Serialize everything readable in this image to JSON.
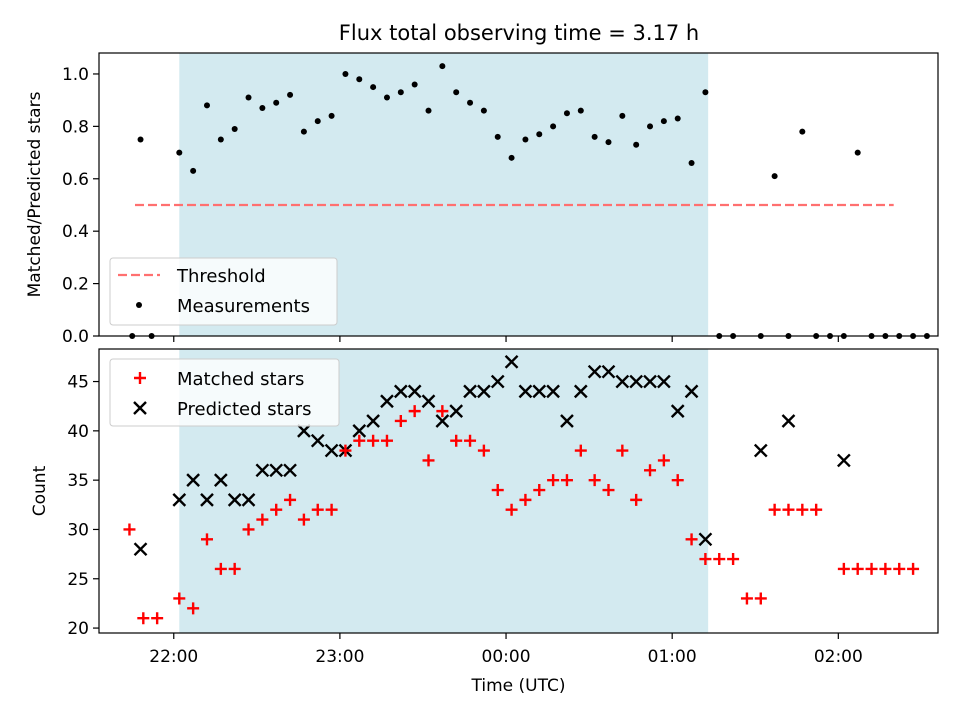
{
  "figure": {
    "title": "Flux total observing time = 3.17 h",
    "xlabel": "Time (UTC)",
    "x_tick_labels": [
      "22:00",
      "23:00",
      "00:00",
      "01:00",
      "02:00"
    ]
  },
  "colors": {
    "span": "#d3eaf0",
    "threshold": "#ff7070",
    "measurement": "#000000",
    "matched": "#ff0000",
    "predicted": "#000000"
  },
  "chart_data": [
    {
      "type": "scatter",
      "panel": "top",
      "ylabel": "Matched/Predicted stars",
      "xlim": [
        "21:33",
        "02:36"
      ],
      "ylim": [
        0,
        1.08
      ],
      "y_ticks": [
        0.0,
        0.2,
        0.4,
        0.6,
        0.8,
        1.0
      ],
      "y_tick_labels": [
        "0.0",
        "0.2",
        "0.4",
        "0.6",
        "0.8",
        "1.0"
      ],
      "shaded_span": [
        "22:02",
        "01:13"
      ],
      "threshold": {
        "name": "Threshold",
        "y": 0.5,
        "x_range": [
          "21:46",
          "02:20"
        ]
      },
      "legend": {
        "loc": "lower left",
        "entries": [
          "Threshold",
          "Measurements"
        ]
      },
      "series": [
        {
          "name": "Measurements",
          "points": [
            [
              "21:45",
              0.0
            ],
            [
              "21:48",
              0.75
            ],
            [
              "21:52",
              0.0
            ],
            [
              "22:02",
              0.7
            ],
            [
              "22:07",
              0.63
            ],
            [
              "22:12",
              0.88
            ],
            [
              "22:17",
              0.75
            ],
            [
              "22:22",
              0.79
            ],
            [
              "22:27",
              0.91
            ],
            [
              "22:32",
              0.87
            ],
            [
              "22:37",
              0.89
            ],
            [
              "22:42",
              0.92
            ],
            [
              "22:47",
              0.78
            ],
            [
              "22:52",
              0.82
            ],
            [
              "22:57",
              0.84
            ],
            [
              "23:02",
              1.0
            ],
            [
              "23:07",
              0.98
            ],
            [
              "23:12",
              0.95
            ],
            [
              "23:17",
              0.91
            ],
            [
              "23:22",
              0.93
            ],
            [
              "23:27",
              0.96
            ],
            [
              "23:32",
              0.86
            ],
            [
              "23:37",
              1.03
            ],
            [
              "23:42",
              0.93
            ],
            [
              "23:47",
              0.89
            ],
            [
              "23:52",
              0.86
            ],
            [
              "23:57",
              0.76
            ],
            [
              "00:02",
              0.68
            ],
            [
              "00:07",
              0.75
            ],
            [
              "00:12",
              0.77
            ],
            [
              "00:17",
              0.8
            ],
            [
              "00:22",
              0.85
            ],
            [
              "00:27",
              0.86
            ],
            [
              "00:32",
              0.76
            ],
            [
              "00:37",
              0.74
            ],
            [
              "00:42",
              0.84
            ],
            [
              "00:47",
              0.73
            ],
            [
              "00:52",
              0.8
            ],
            [
              "00:57",
              0.82
            ],
            [
              "01:02",
              0.83
            ],
            [
              "01:07",
              0.66
            ],
            [
              "01:12",
              0.93
            ],
            [
              "01:17",
              0.0
            ],
            [
              "01:22",
              0.0
            ],
            [
              "01:32",
              0.0
            ],
            [
              "01:37",
              0.61
            ],
            [
              "01:42",
              0.0
            ],
            [
              "01:47",
              0.78
            ],
            [
              "01:52",
              0.0
            ],
            [
              "01:57",
              0.0
            ],
            [
              "02:02",
              0.0
            ],
            [
              "02:07",
              0.7
            ],
            [
              "02:12",
              0.0
            ],
            [
              "02:17",
              0.0
            ],
            [
              "02:22",
              0.0
            ],
            [
              "02:27",
              0.0
            ],
            [
              "02:32",
              0.0
            ]
          ]
        }
      ]
    },
    {
      "type": "scatter",
      "panel": "bottom",
      "ylabel": "Count",
      "xlim": [
        "21:33",
        "02:36"
      ],
      "ylim": [
        19.5,
        48.3
      ],
      "y_ticks": [
        20,
        25,
        30,
        35,
        40,
        45
      ],
      "y_tick_labels": [
        "20",
        "25",
        "30",
        "35",
        "40",
        "45"
      ],
      "shaded_span": [
        "22:02",
        "01:13"
      ],
      "legend": {
        "loc": "upper left",
        "entries": [
          "Matched stars",
          "Predicted stars"
        ]
      },
      "series": [
        {
          "name": "Matched stars",
          "marker": "+",
          "points": [
            [
              "21:44",
              30
            ],
            [
              "21:49",
              21
            ],
            [
              "21:54",
              21
            ],
            [
              "22:02",
              23
            ],
            [
              "22:07",
              22
            ],
            [
              "22:12",
              29
            ],
            [
              "22:17",
              26
            ],
            [
              "22:22",
              26
            ],
            [
              "22:27",
              30
            ],
            [
              "22:32",
              31
            ],
            [
              "22:37",
              32
            ],
            [
              "22:42",
              33
            ],
            [
              "22:47",
              31
            ],
            [
              "22:52",
              32
            ],
            [
              "22:57",
              32
            ],
            [
              "23:02",
              38
            ],
            [
              "23:07",
              39
            ],
            [
              "23:12",
              39
            ],
            [
              "23:17",
              39
            ],
            [
              "23:22",
              41
            ],
            [
              "23:27",
              42
            ],
            [
              "23:32",
              37
            ],
            [
              "23:37",
              42
            ],
            [
              "23:42",
              39
            ],
            [
              "23:47",
              39
            ],
            [
              "23:52",
              38
            ],
            [
              "23:57",
              34
            ],
            [
              "00:02",
              32
            ],
            [
              "00:07",
              33
            ],
            [
              "00:12",
              34
            ],
            [
              "00:17",
              35
            ],
            [
              "00:22",
              35
            ],
            [
              "00:27",
              38
            ],
            [
              "00:32",
              35
            ],
            [
              "00:37",
              34
            ],
            [
              "00:42",
              38
            ],
            [
              "00:47",
              33
            ],
            [
              "00:52",
              36
            ],
            [
              "00:57",
              37
            ],
            [
              "01:02",
              35
            ],
            [
              "01:07",
              29
            ],
            [
              "01:12",
              27
            ],
            [
              "01:17",
              27
            ],
            [
              "01:22",
              27
            ],
            [
              "01:27",
              23
            ],
            [
              "01:32",
              23
            ],
            [
              "01:37",
              32
            ],
            [
              "01:42",
              32
            ],
            [
              "01:47",
              32
            ],
            [
              "01:52",
              32
            ],
            [
              "02:02",
              26
            ],
            [
              "02:07",
              26
            ],
            [
              "02:12",
              26
            ],
            [
              "02:17",
              26
            ],
            [
              "02:22",
              26
            ],
            [
              "02:27",
              26
            ]
          ]
        },
        {
          "name": "Predicted stars",
          "marker": "x",
          "points": [
            [
              "21:48",
              28
            ],
            [
              "22:02",
              33
            ],
            [
              "22:07",
              35
            ],
            [
              "22:12",
              33
            ],
            [
              "22:17",
              35
            ],
            [
              "22:22",
              33
            ],
            [
              "22:27",
              33
            ],
            [
              "22:32",
              36
            ],
            [
              "22:37",
              36
            ],
            [
              "22:42",
              36
            ],
            [
              "22:47",
              40
            ],
            [
              "22:52",
              39
            ],
            [
              "22:57",
              38
            ],
            [
              "23:02",
              38
            ],
            [
              "23:07",
              40
            ],
            [
              "23:12",
              41
            ],
            [
              "23:17",
              43
            ],
            [
              "23:22",
              44
            ],
            [
              "23:27",
              44
            ],
            [
              "23:32",
              43
            ],
            [
              "23:37",
              41
            ],
            [
              "23:42",
              42
            ],
            [
              "23:47",
              44
            ],
            [
              "23:52",
              44
            ],
            [
              "23:57",
              45
            ],
            [
              "00:02",
              47
            ],
            [
              "00:07",
              44
            ],
            [
              "00:12",
              44
            ],
            [
              "00:17",
              44
            ],
            [
              "00:22",
              41
            ],
            [
              "00:27",
              44
            ],
            [
              "00:32",
              46
            ],
            [
              "00:37",
              46
            ],
            [
              "00:42",
              45
            ],
            [
              "00:47",
              45
            ],
            [
              "00:52",
              45
            ],
            [
              "00:57",
              45
            ],
            [
              "01:02",
              42
            ],
            [
              "01:07",
              44
            ],
            [
              "01:12",
              29
            ],
            [
              "01:32",
              38
            ],
            [
              "01:42",
              41
            ],
            [
              "02:02",
              37
            ]
          ]
        }
      ]
    }
  ]
}
